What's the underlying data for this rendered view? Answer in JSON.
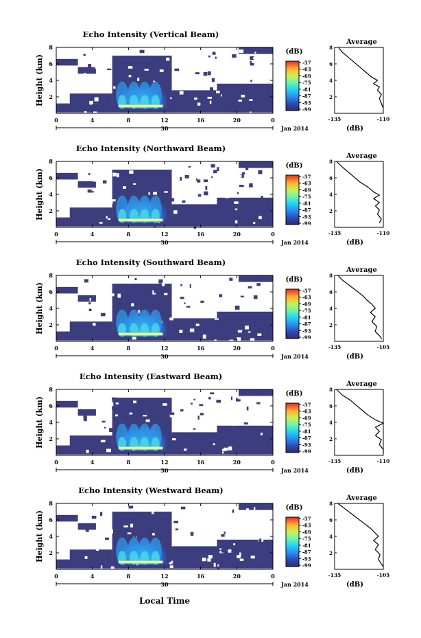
{
  "figure": {
    "bottom_xlabel": "Local Time",
    "date_label": "Jan 2014",
    "date_tick": "30"
  },
  "chart_data": [
    {
      "type": "heatmap",
      "title": "Echo Intensity (Vertical Beam)",
      "ylabel": "Height (km)",
      "xlim": [
        0,
        24
      ],
      "ylim": [
        0,
        8
      ],
      "xticks": [
        "0",
        "4",
        "8",
        "12",
        "16",
        "20",
        "0"
      ],
      "yticks": [
        "2",
        "4",
        "6",
        "8"
      ],
      "colorbar": {
        "unit": "(dB)",
        "ticks": [
          "-57",
          "-63",
          "-69",
          "-75",
          "-81",
          "-87",
          "-93",
          "-99"
        ],
        "range": [
          -99,
          -57
        ]
      },
      "profile": {
        "title": "Average",
        "xlabel": "(dB)",
        "xticks": [
          "-135",
          "-110"
        ],
        "xlim": [
          -135,
          -110
        ],
        "yticks": [
          "2",
          "4",
          "6",
          "8"
        ],
        "points": [
          [
            -133,
            8.0
          ],
          [
            -131,
            7.4
          ],
          [
            -128,
            6.8
          ],
          [
            -125,
            6.2
          ],
          [
            -122,
            5.6
          ],
          [
            -119,
            5.0
          ],
          [
            -116,
            4.4
          ],
          [
            -113,
            4.0
          ],
          [
            -115,
            3.6
          ],
          [
            -112,
            3.2
          ],
          [
            -113,
            2.8
          ],
          [
            -111,
            2.3
          ],
          [
            -112,
            1.8
          ],
          [
            -111,
            1.2
          ],
          [
            -110,
            0.6
          ]
        ]
      }
    },
    {
      "type": "heatmap",
      "title": "Echo Intensity (Northward Beam)",
      "ylabel": "Height (km)",
      "xlim": [
        0,
        24
      ],
      "ylim": [
        0,
        8
      ],
      "xticks": [
        "0",
        "4",
        "8",
        "12",
        "16",
        "20",
        "0"
      ],
      "yticks": [
        "2",
        "4",
        "6",
        "8"
      ],
      "colorbar": {
        "unit": "(dB)",
        "ticks": [
          "-57",
          "-63",
          "-69",
          "-75",
          "-81",
          "-87",
          "-93",
          "-99"
        ],
        "range": [
          -99,
          -57
        ]
      },
      "profile": {
        "title": "Average",
        "xlabel": "(dB)",
        "xticks": [
          "-135",
          "-110"
        ],
        "xlim": [
          -135,
          -110
        ],
        "yticks": [
          "2",
          "4",
          "6",
          "8"
        ],
        "points": [
          [
            -134,
            8.0
          ],
          [
            -131,
            7.3
          ],
          [
            -128,
            6.7
          ],
          [
            -125,
            6.1
          ],
          [
            -122,
            5.5
          ],
          [
            -118,
            4.9
          ],
          [
            -115,
            4.3
          ],
          [
            -112,
            3.9
          ],
          [
            -115,
            3.5
          ],
          [
            -112,
            3.0
          ],
          [
            -114,
            2.6
          ],
          [
            -112,
            2.1
          ],
          [
            -113,
            1.6
          ],
          [
            -111,
            1.0
          ],
          [
            -112,
            0.5
          ]
        ]
      }
    },
    {
      "type": "heatmap",
      "title": "Echo Intensity (Southward Beam)",
      "ylabel": "Height (km)",
      "xlim": [
        0,
        24
      ],
      "ylim": [
        0,
        8
      ],
      "xticks": [
        "0",
        "4",
        "8",
        "12",
        "16",
        "20",
        "0"
      ],
      "yticks": [
        "2",
        "4",
        "6",
        "8"
      ],
      "colorbar": {
        "unit": "(dB)",
        "ticks": [
          "-57",
          "-63",
          "-69",
          "-75",
          "-81",
          "-87",
          "-93",
          "-99"
        ],
        "range": [
          -99,
          -57
        ]
      },
      "profile": {
        "title": "Average",
        "xlabel": "(dB)",
        "xticks": [
          "-135",
          "-105"
        ],
        "xlim": [
          -135,
          -105
        ],
        "yticks": [
          "2",
          "4",
          "6",
          "8"
        ],
        "points": [
          [
            -133,
            8.0
          ],
          [
            -130,
            7.4
          ],
          [
            -126,
            6.8
          ],
          [
            -122,
            6.2
          ],
          [
            -118,
            5.6
          ],
          [
            -115,
            5.0
          ],
          [
            -112,
            4.5
          ],
          [
            -110,
            4.0
          ],
          [
            -113,
            3.5
          ],
          [
            -110,
            3.0
          ],
          [
            -112,
            2.4
          ],
          [
            -109,
            1.8
          ],
          [
            -110,
            1.2
          ],
          [
            -107,
            0.6
          ],
          [
            -106,
            0.3
          ]
        ]
      }
    },
    {
      "type": "heatmap",
      "title": "Echo Intensity (Eastward Beam)",
      "ylabel": "Height (km)",
      "xlim": [
        0,
        24
      ],
      "ylim": [
        0,
        8
      ],
      "xticks": [
        "0",
        "4",
        "8",
        "12",
        "16",
        "20",
        "0"
      ],
      "yticks": [
        "2",
        "4",
        "6",
        "8"
      ],
      "colorbar": {
        "unit": "(dB)",
        "ticks": [
          "-57",
          "-63",
          "-69",
          "-75",
          "-81",
          "-87",
          "-93",
          "-99"
        ],
        "range": [
          -99,
          -57
        ]
      },
      "profile": {
        "title": "Average",
        "xlabel": "(dB)",
        "xticks": [
          "-135",
          "-110"
        ],
        "xlim": [
          -135,
          -110
        ],
        "yticks": [
          "2",
          "4",
          "6",
          "8"
        ],
        "points": [
          [
            -134,
            8.0
          ],
          [
            -131,
            7.3
          ],
          [
            -127,
            6.7
          ],
          [
            -124,
            6.1
          ],
          [
            -121,
            5.5
          ],
          [
            -118,
            4.9
          ],
          [
            -114,
            4.3
          ],
          [
            -110,
            3.9
          ],
          [
            -114,
            3.4
          ],
          [
            -112,
            2.9
          ],
          [
            -114,
            2.4
          ],
          [
            -111,
            1.9
          ],
          [
            -112,
            1.3
          ],
          [
            -110,
            0.7
          ],
          [
            -110,
            0.3
          ]
        ]
      }
    },
    {
      "type": "heatmap",
      "title": "Echo Intensity (Westward Beam)",
      "ylabel": "Height (km)",
      "xlim": [
        0,
        24
      ],
      "ylim": [
        0,
        8
      ],
      "xticks": [
        "0",
        "4",
        "8",
        "12",
        "16",
        "20",
        "0"
      ],
      "yticks": [
        "2",
        "4",
        "6",
        "8"
      ],
      "colorbar": {
        "unit": "(dB)",
        "ticks": [
          "-57",
          "-63",
          "-69",
          "-75",
          "-81",
          "-87",
          "-93",
          "-99"
        ],
        "range": [
          -99,
          -57
        ]
      },
      "profile": {
        "title": "Average",
        "xlabel": "(dB)",
        "xticks": [
          "-135",
          "-105"
        ],
        "xlim": [
          -135,
          -105
        ],
        "yticks": [
          "2",
          "4",
          "6",
          "8"
        ],
        "points": [
          [
            -133,
            8.0
          ],
          [
            -129,
            7.4
          ],
          [
            -125,
            6.8
          ],
          [
            -121,
            6.2
          ],
          [
            -117,
            5.6
          ],
          [
            -113,
            5.0
          ],
          [
            -110,
            4.4
          ],
          [
            -108,
            4.0
          ],
          [
            -111,
            3.5
          ],
          [
            -108,
            3.0
          ],
          [
            -110,
            2.4
          ],
          [
            -107,
            1.8
          ],
          [
            -108,
            1.2
          ],
          [
            -106,
            0.6
          ],
          [
            -105,
            0.3
          ]
        ]
      }
    }
  ]
}
